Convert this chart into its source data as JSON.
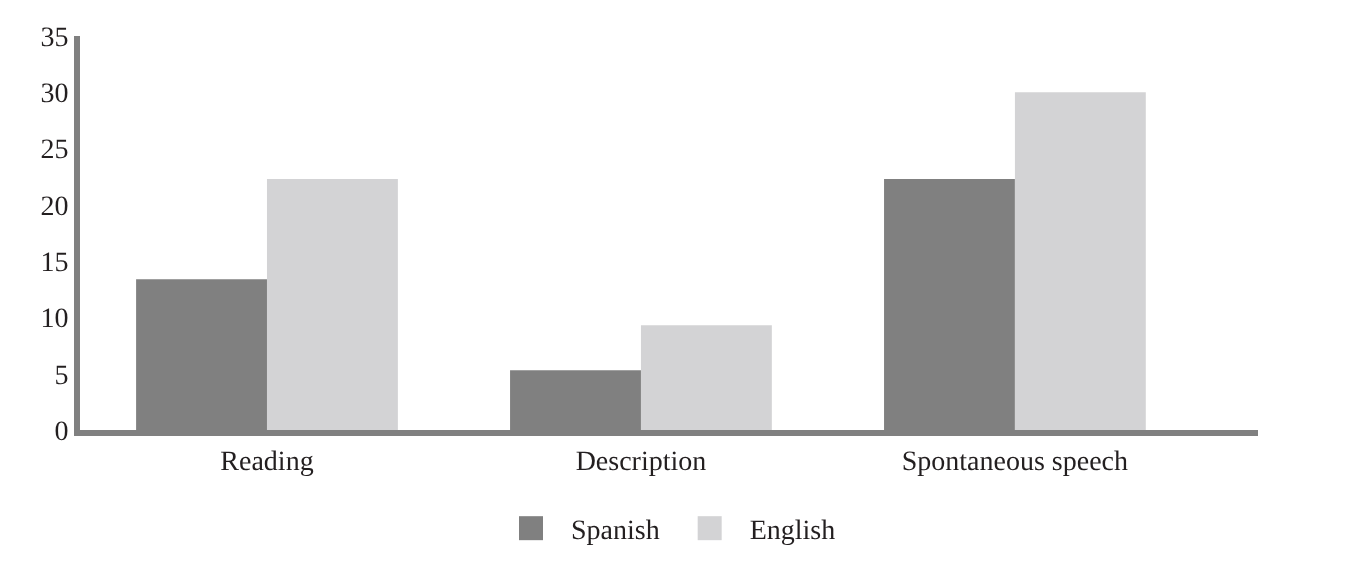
{
  "chart_data": {
    "type": "bar",
    "categories": [
      "Reading",
      "Description",
      "Spontaneous speech"
    ],
    "series": [
      {
        "name": "Spanish",
        "color": "#808080",
        "values": [
          13.4,
          5.3,
          22.3
        ]
      },
      {
        "name": "English",
        "color": "#d3d3d5",
        "values": [
          22.3,
          9.3,
          30.0
        ]
      }
    ],
    "ylim": [
      0,
      35
    ],
    "yticks": [
      0,
      5,
      10,
      15,
      20,
      25,
      30,
      35
    ],
    "legend": "bottom"
  }
}
